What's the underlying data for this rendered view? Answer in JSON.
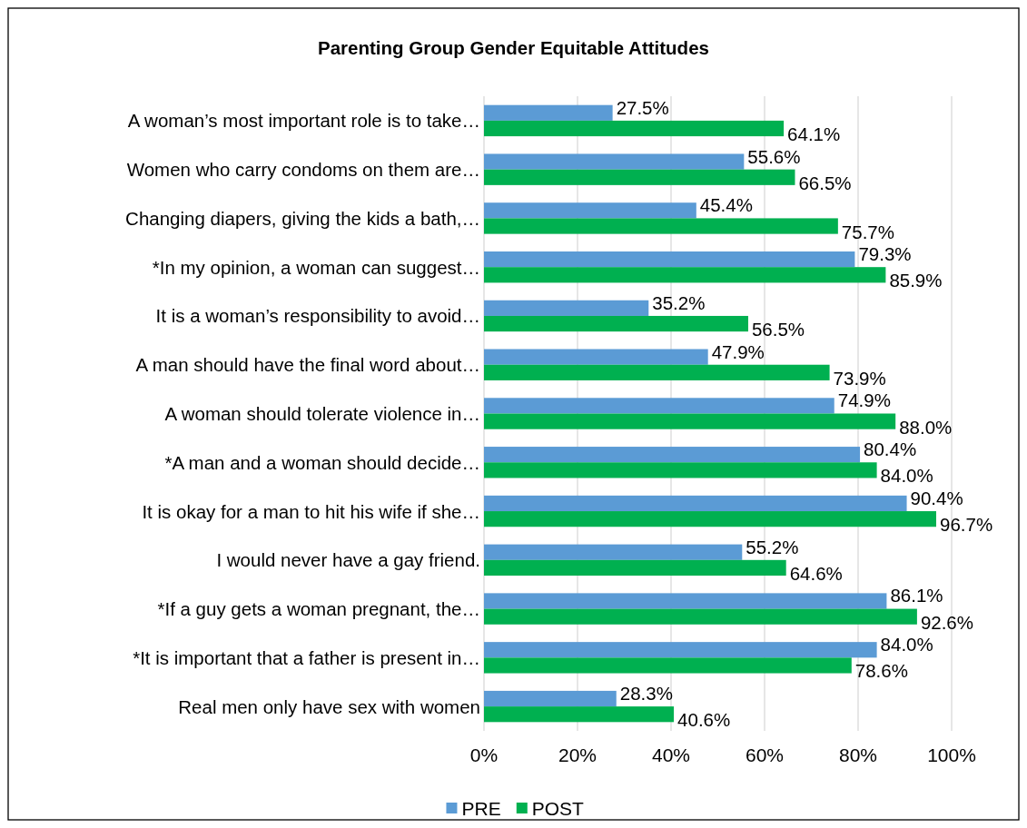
{
  "chart_data": {
    "type": "bar",
    "orientation": "horizontal",
    "title": "Parenting Group Gender Equitable Attitudes",
    "categories": [
      "A woman’s most important role is to take…",
      "Women who carry condoms on them are…",
      "Changing diapers, giving the kids a bath,…",
      "*In my opinion, a woman can suggest…",
      "It is a woman’s responsibility to avoid…",
      "A man should have the final word about…",
      "A woman should tolerate violence in…",
      "*A man and a woman should decide…",
      "It is okay for a man to hit his wife if she…",
      "I would never have a gay friend.",
      "*If a guy gets a woman pregnant, the…",
      "*It is important that a father is present in…",
      "Real men only have sex with women"
    ],
    "series": [
      {
        "name": "PRE",
        "color": "#5b9bd5",
        "values": [
          27.5,
          55.6,
          45.4,
          79.3,
          35.2,
          47.9,
          74.9,
          80.4,
          90.4,
          55.2,
          86.1,
          84.0,
          28.3
        ],
        "value_labels": [
          "27.5%",
          "55.6%",
          "45.4%",
          "79.3%",
          "35.2%",
          "47.9%",
          "74.9%",
          "80.4%",
          "90.4%",
          "55.2%",
          "86.1%",
          "84.0%",
          "28.3%"
        ]
      },
      {
        "name": "POST",
        "color": "#00b050",
        "values": [
          64.1,
          66.5,
          75.7,
          85.9,
          56.5,
          73.9,
          88.0,
          84.0,
          96.7,
          64.6,
          92.6,
          78.6,
          40.6
        ],
        "value_labels": [
          "64.1%",
          "66.5%",
          "75.7%",
          "85.9%",
          "56.5%",
          "73.9%",
          "88.0%",
          "84.0%",
          "96.7%",
          "64.6%",
          "92.6%",
          "78.6%",
          "40.6%"
        ]
      }
    ],
    "xlim": [
      0,
      100
    ],
    "xticks": [
      {
        "value": 0,
        "label": "0%"
      },
      {
        "value": 20,
        "label": "20%"
      },
      {
        "value": 40,
        "label": "40%"
      },
      {
        "value": 60,
        "label": "60%"
      },
      {
        "value": 80,
        "label": "80%"
      },
      {
        "value": 100,
        "label": "100%"
      }
    ],
    "grid": "x",
    "legend": "bottom"
  }
}
